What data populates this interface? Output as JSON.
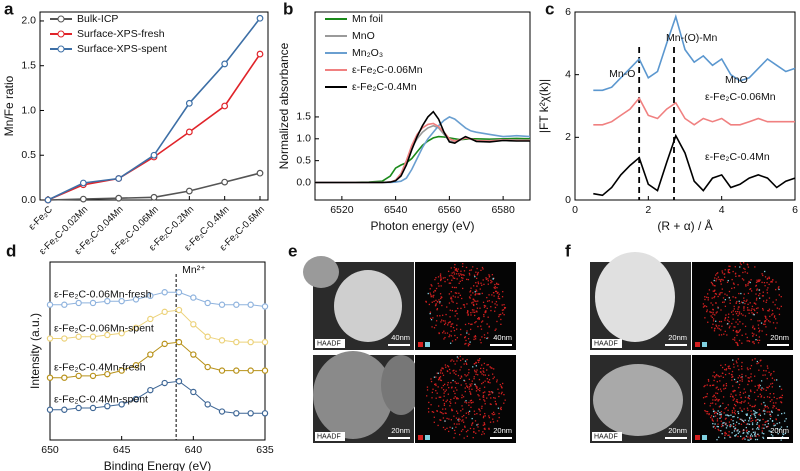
{
  "chart_data": [
    {
      "panel_label": "a",
      "type": "line",
      "y_label": "Mn/Fe ratio",
      "markers": "circle",
      "legend": "top-left",
      "categories": [
        "ε-Fe₂C",
        "ε-Fe₂C-0.02Mn",
        "ε-Fe₂C-0.04Mn",
        "ε-Fe₂C-0.06Mn",
        "ε-Fe₂C-0.2Mn",
        "ε-Fe₂C-0.4Mn",
        "ε-Fe₂C-0.6Mn"
      ],
      "series": [
        {
          "name": "Bulk-ICP",
          "color": "#555555",
          "values": [
            0,
            0.01,
            0.02,
            0.03,
            0.1,
            0.2,
            0.3
          ]
        },
        {
          "name": "Surface-XPS-fresh",
          "color": "#e0242a",
          "values": [
            0,
            0.17,
            0.24,
            0.48,
            0.76,
            1.05,
            1.63
          ]
        },
        {
          "name": "Surface-XPS-spent",
          "color": "#3d6fa6",
          "values": [
            0,
            0.19,
            0.24,
            0.5,
            1.08,
            1.52,
            2.03
          ]
        }
      ],
      "ylim": [
        0,
        2.1
      ],
      "yticks": [
        {
          "value": 0,
          "label": "0.0"
        },
        {
          "value": 0.5,
          "label": "0.5"
        },
        {
          "value": 1,
          "label": "1.0"
        },
        {
          "value": 1.5,
          "label": "1.5"
        },
        {
          "value": 2,
          "label": "2.0"
        }
      ]
    },
    {
      "panel_label": "b",
      "type": "line",
      "x_label": "Photon energy (eV)",
      "y_label": "Normalized absorbance",
      "legend": "top-left",
      "x": [
        6510,
        6520,
        6530,
        6535,
        6538,
        6540,
        6542,
        6544,
        6546,
        6548,
        6550,
        6552,
        6554,
        6556,
        6558,
        6560,
        6562,
        6564,
        6566,
        6568,
        6570,
        6575,
        6580,
        6585,
        6590
      ],
      "series": [
        {
          "name": "Mn foil",
          "color": "#1a8a1a",
          "values": [
            0,
            0,
            0.01,
            0.03,
            0.15,
            0.33,
            0.4,
            0.45,
            0.55,
            0.7,
            0.85,
            0.95,
            1.02,
            1.05,
            1.04,
            1.02,
            1,
            0.98,
            0.99,
            1,
            1,
            0.99,
            1,
            1.01,
            1
          ]
        },
        {
          "name": "MnO",
          "color": "#9a9a9a",
          "values": [
            0,
            0,
            0,
            0,
            0.01,
            0.05,
            0.2,
            0.5,
            0.8,
            1,
            1.15,
            1.25,
            1.3,
            1.25,
            1.1,
            0.95,
            0.93,
            0.97,
            1.02,
            0.99,
            0.95,
            0.96,
            0.98,
            0.97,
            0.97
          ]
        },
        {
          "name": "Mn₂O₃",
          "color": "#6a9fd0",
          "values": [
            0,
            0,
            0,
            0,
            0,
            0.01,
            0.03,
            0.1,
            0.3,
            0.55,
            0.8,
            1,
            1.15,
            1.3,
            1.42,
            1.5,
            1.45,
            1.35,
            1.25,
            1.18,
            1.15,
            1.1,
            1.05,
            1.07,
            1.05
          ]
        },
        {
          "name": "ε-Fe₂C-0.06Mn",
          "color": "#f08080",
          "values": [
            0,
            0,
            0,
            0,
            0.01,
            0.05,
            0.2,
            0.5,
            0.85,
            1.1,
            1.25,
            1.33,
            1.35,
            1.28,
            1.15,
            1,
            0.95,
            0.98,
            1.02,
            1,
            0.96,
            0.95,
            0.97,
            0.96,
            0.96
          ]
        },
        {
          "name": "ε-Fe₂C-0.4Mn",
          "color": "#000000",
          "values": [
            0,
            0,
            0,
            0,
            0.01,
            0.04,
            0.15,
            0.4,
            0.75,
            1.05,
            1.3,
            1.5,
            1.62,
            1.45,
            1.15,
            0.93,
            0.9,
            0.98,
            1.05,
            1,
            0.94,
            0.93,
            0.96,
            0.95,
            0.95
          ]
        }
      ],
      "xlim": [
        6510,
        6590
      ],
      "xticks": [
        6520,
        6540,
        6560,
        6580
      ],
      "ylim": [
        -0.4,
        3.9
      ],
      "yticks": [
        {
          "value": 0,
          "label": "0.0"
        },
        {
          "value": 0.5,
          "label": "0.5"
        },
        {
          "value": 1,
          "label": "1.0"
        },
        {
          "value": 1.5,
          "label": "1.5"
        }
      ]
    },
    {
      "panel_label": "c",
      "type": "line",
      "x_label": "(R + α) / Å",
      "y_label": "|FT k²χ(k)|",
      "legend": "direct",
      "annotations": [
        "Mn-O",
        "Mn-(O)-Mn"
      ],
      "ref_lines": [
        1.75,
        2.7
      ],
      "x": [
        0.5,
        0.75,
        1,
        1.25,
        1.5,
        1.75,
        2,
        2.25,
        2.5,
        2.75,
        3,
        3.25,
        3.5,
        3.75,
        4,
        4.25,
        4.5,
        4.75,
        5,
        5.25,
        5.5,
        5.75,
        6
      ],
      "series": [
        {
          "name": "MnO",
          "color": "#5b97cf",
          "values": [
            3.5,
            3.5,
            3.6,
            3.9,
            4.2,
            4.5,
            3.9,
            4.1,
            5,
            5.85,
            4.8,
            4.4,
            4.6,
            4.3,
            4.5,
            4,
            3.8,
            3.9,
            4.2,
            4.5,
            4.3,
            4.1,
            4.2
          ]
        },
        {
          "name": "ε-Fe₂C-0.06Mn",
          "color": "#f08080",
          "values": [
            2.4,
            2.4,
            2.5,
            2.7,
            2.9,
            3.25,
            2.7,
            2.6,
            2.9,
            3.1,
            2.6,
            2.4,
            2.6,
            2.5,
            2.6,
            2.4,
            2.4,
            2.5,
            2.6,
            2.5,
            2.5,
            2.5,
            2.5
          ]
        },
        {
          "name": "ε-Fe₂C-0.4Mn",
          "color": "#000000",
          "values": [
            0.2,
            0.15,
            0.4,
            0.8,
            1.1,
            1.35,
            0.5,
            0.3,
            1.2,
            2.05,
            1.5,
            0.6,
            0.3,
            0.7,
            0.8,
            0.4,
            0.5,
            0.7,
            0.8,
            0.7,
            0.4,
            0.6,
            0.7
          ]
        }
      ],
      "xlim": [
        0,
        6
      ],
      "xticks": [
        0,
        2,
        4,
        6
      ],
      "ylim": [
        0,
        6
      ],
      "yticks": [
        0,
        2,
        4,
        6
      ]
    },
    {
      "panel_label": "d",
      "type": "line",
      "x_label": "Binding Energy (eV)",
      "y_label": "Intensity (a.u.)",
      "legend": "direct",
      "markers": "circle",
      "annotations": [
        "Mn²⁺"
      ],
      "ref_lines": [
        641.2
      ],
      "x": [
        650,
        649,
        648,
        647,
        646,
        645,
        644,
        643,
        642,
        641,
        640,
        639,
        638,
        637,
        636,
        635
      ],
      "series": [
        {
          "name": "ε-Fe₂C-0.06Mn-fresh",
          "color": "#8fb3de",
          "values": [
            7.6,
            7.6,
            7.7,
            7.7,
            7.8,
            7.8,
            7.9,
            8.1,
            8.3,
            8.3,
            8,
            7.7,
            7.6,
            7.6,
            7.6,
            7.5
          ]
        },
        {
          "name": "ε-Fe₂C-0.06Mn-spent",
          "color": "#ecd27a",
          "values": [
            5.7,
            5.7,
            5.8,
            5.8,
            5.9,
            6,
            6.3,
            6.8,
            7.2,
            7.3,
            6.5,
            5.8,
            5.6,
            5.5,
            5.5,
            5.5
          ]
        },
        {
          "name": "ε-Fe₂C-0.4Mn-fresh",
          "color": "#b8921a",
          "values": [
            3.5,
            3.5,
            3.6,
            3.6,
            3.7,
            3.9,
            4.2,
            4.8,
            5.4,
            5.5,
            4.8,
            4.1,
            3.9,
            3.9,
            3.9,
            3.9
          ]
        },
        {
          "name": "ε-Fe₂C-0.4Mn-spent",
          "color": "#3f6796",
          "values": [
            1.7,
            1.7,
            1.8,
            1.8,
            1.9,
            2,
            2.3,
            2.8,
            3.2,
            3.3,
            2.7,
            2,
            1.6,
            1.5,
            1.5,
            1.5
          ]
        }
      ],
      "xlim": [
        650,
        635
      ],
      "xticks": [
        650,
        645,
        640,
        635
      ],
      "ylim": [
        0,
        10
      ]
    }
  ],
  "image_panels": [
    {
      "label": "e",
      "tiles": [
        {
          "caption": "HAADF",
          "scale": "40nm",
          "map_scale": "40nm"
        },
        {
          "caption": "HAADF",
          "scale": "20nm",
          "map_scale": "20nm"
        }
      ]
    },
    {
      "label": "f",
      "tiles": [
        {
          "caption": "HAADF",
          "scale": "20nm",
          "map_scale": "20nm"
        },
        {
          "caption": "HAADF",
          "scale": "20nm",
          "map_scale": "20nm"
        }
      ]
    }
  ]
}
